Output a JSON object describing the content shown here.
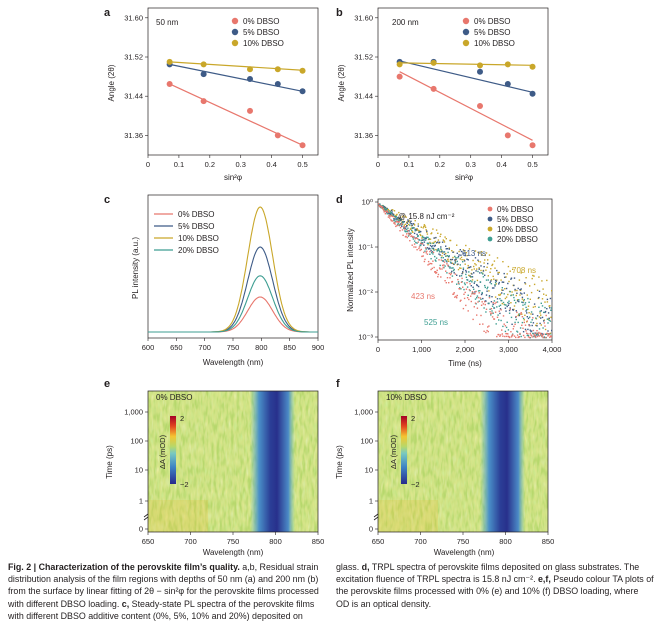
{
  "panels": {
    "a": {
      "label": "a",
      "depth": "50 nm",
      "xlabel": "sin²φ",
      "ylabel": "Angle (2θ)",
      "xticks": [
        "0",
        "0.1",
        "0.2",
        "0.3",
        "0.4",
        "0.5"
      ],
      "yticks": [
        "31.60",
        "31.52",
        "31.44",
        "31.36"
      ]
    },
    "b": {
      "label": "b",
      "depth": "200 nm",
      "xlabel": "sin²φ",
      "ylabel": "Angle (2θ)",
      "xticks": [
        "0",
        "0.1",
        "0.2",
        "0.3",
        "0.4",
        "0.5"
      ],
      "yticks": [
        "31.60",
        "31.52",
        "31.44",
        "31.36"
      ]
    },
    "c": {
      "label": "c",
      "xlabel": "Wavelength (nm)",
      "ylabel": "PL intensity (a.u.)",
      "xticks": [
        "600",
        "650",
        "700",
        "750",
        "800",
        "850",
        "900"
      ]
    },
    "d": {
      "label": "d",
      "xlabel": "Time (ns)",
      "ylabel": "Normalized PL intensity",
      "fluence": "@ 15.8 nJ cm⁻²",
      "xticks": [
        "0",
        "1,000",
        "2,000",
        "3,000",
        "4,000"
      ],
      "yticks": [
        "10⁰",
        "10⁻¹",
        "10⁻²",
        "10⁻³"
      ],
      "lifetimes": [
        "423 ns",
        "613 ns",
        "708 ns",
        "525 ns"
      ]
    },
    "e": {
      "label": "e",
      "tag": "0% DBSO",
      "xlabel": "Wavelength (nm)",
      "ylabel": "Time (ps)",
      "xticks": [
        "650",
        "700",
        "750",
        "800",
        "850"
      ],
      "yticks": [
        "1,000",
        "100",
        "10",
        "1",
        "0"
      ],
      "cbar": {
        "top": "2",
        "bottom": "−2",
        "label": "ΔA (mOD)"
      }
    },
    "f": {
      "label": "f",
      "tag": "10% DBSO",
      "xlabel": "Wavelength (nm)",
      "ylabel": "Time (ps)",
      "xticks": [
        "650",
        "700",
        "750",
        "800",
        "850"
      ],
      "yticks": [
        "1,000",
        "100",
        "10",
        "1",
        "0"
      ],
      "cbar": {
        "top": "2",
        "bottom": "−2",
        "label": "ΔA (mOD)"
      }
    }
  },
  "legend": {
    "series": [
      "0% DBSO",
      "5% DBSO",
      "10% DBSO",
      "20% DBSO"
    ],
    "colors": [
      "#e8776d",
      "#3e5b87",
      "#c9a72a",
      "#3e9e92"
    ]
  },
  "chart_data": [
    {
      "type": "scatter",
      "panel": "a",
      "title": "50 nm",
      "xlabel": "sin²φ",
      "ylabel": "Angle (2θ)",
      "xlim": [
        0,
        0.55
      ],
      "ylim": [
        31.32,
        31.62
      ],
      "series": [
        {
          "name": "0% DBSO",
          "x": [
            0.07,
            0.18,
            0.33,
            0.42,
            0.5
          ],
          "y": [
            31.465,
            31.43,
            31.41,
            31.36,
            31.34
          ],
          "fit": [
            [
              0.07,
              31.465
            ],
            [
              0.5,
              31.34
            ]
          ]
        },
        {
          "name": "5% DBSO",
          "x": [
            0.07,
            0.18,
            0.33,
            0.42,
            0.5
          ],
          "y": [
            31.505,
            31.485,
            31.475,
            31.465,
            31.45
          ],
          "fit": [
            [
              0.07,
              31.505
            ],
            [
              0.5,
              31.45
            ]
          ]
        },
        {
          "name": "10% DBSO",
          "x": [
            0.07,
            0.18,
            0.33,
            0.42,
            0.5
          ],
          "y": [
            31.51,
            31.505,
            31.495,
            31.495,
            31.492
          ],
          "fit": [
            [
              0.07,
              31.51
            ],
            [
              0.5,
              31.493
            ]
          ]
        }
      ]
    },
    {
      "type": "scatter",
      "panel": "b",
      "title": "200 nm",
      "xlabel": "sin²φ",
      "ylabel": "Angle (2θ)",
      "xlim": [
        0,
        0.55
      ],
      "ylim": [
        31.32,
        31.62
      ],
      "series": [
        {
          "name": "0% DBSO",
          "x": [
            0.07,
            0.18,
            0.33,
            0.42,
            0.5
          ],
          "y": [
            31.48,
            31.455,
            31.42,
            31.36,
            31.34
          ],
          "fit": [
            [
              0.07,
              31.49
            ],
            [
              0.5,
              31.35
            ]
          ]
        },
        {
          "name": "5% DBSO",
          "x": [
            0.07,
            0.18,
            0.33,
            0.42,
            0.5
          ],
          "y": [
            31.51,
            31.51,
            31.49,
            31.465,
            31.445
          ],
          "fit": [
            [
              0.07,
              31.512
            ],
            [
              0.5,
              31.448
            ]
          ]
        },
        {
          "name": "10% DBSO",
          "x": [
            0.07,
            0.18,
            0.33,
            0.42,
            0.5
          ],
          "y": [
            31.505,
            31.508,
            31.503,
            31.505,
            31.5
          ],
          "fit": [
            [
              0.07,
              31.508
            ],
            [
              0.5,
              31.503
            ]
          ]
        }
      ]
    },
    {
      "type": "line",
      "panel": "c",
      "xlabel": "Wavelength (nm)",
      "ylabel": "PL intensity (a.u.)",
      "xlim": [
        600,
        900
      ],
      "peak_nm": 798,
      "series": [
        {
          "name": "0% DBSO",
          "peak": 0.28
        },
        {
          "name": "5% DBSO",
          "peak": 0.68
        },
        {
          "name": "10% DBSO",
          "peak": 1.0
        },
        {
          "name": "20% DBSO",
          "peak": 0.45
        }
      ]
    },
    {
      "type": "scatter",
      "panel": "d",
      "xlabel": "Time (ns)",
      "ylabel": "Normalized PL intensity",
      "xlim": [
        0,
        4000
      ],
      "ylim_log10": [
        -3,
        0
      ],
      "series": [
        {
          "name": "0% DBSO",
          "tau_ns": 423
        },
        {
          "name": "5% DBSO",
          "tau_ns": 613
        },
        {
          "name": "10% DBSO",
          "tau_ns": 708
        },
        {
          "name": "20% DBSO",
          "tau_ns": 525
        }
      ]
    },
    {
      "type": "heatmap",
      "panel": "e",
      "xlabel": "Wavelength (nm)",
      "ylabel": "Time (ps)",
      "xlim": [
        650,
        850
      ],
      "bleach_nm": 790,
      "zlim": [
        -2,
        2
      ]
    },
    {
      "type": "heatmap",
      "panel": "f",
      "xlabel": "Wavelength (nm)",
      "ylabel": "Time (ps)",
      "xlim": [
        650,
        850
      ],
      "bleach_nm": 790,
      "zlim": [
        -2,
        2
      ]
    }
  ],
  "caption": {
    "left": {
      "fig": "Fig. 2 | ",
      "title": "Characterization of the perovskite film’s quality.",
      "body1": " a,b, Residual strain distribution analysis of the film regions with depths of 50 nm (a) and 200 nm (b) from the surface by linear fitting of 2θ − sin²φ for the perovskite films processed with different DBSO loading. ",
      "c_lab": "c,",
      "body2": " Steady-state PL spectra of the perovskite films with different DBSO additive content (0%, 5%, 10% and 20%) deposited on"
    },
    "right": {
      "body1": "glass. ",
      "d_lab": "d,",
      "body2": " TRPL spectra of perovskite films deposited on glass substrates. The excitation fluence of TRPL spectra is 15.8 nJ cm⁻². ",
      "ef_lab": "e,f,",
      "body3": " Pseudo colour TA plots of the perovskite films processed with 0% (e) and 10% (f) DBSO loading, where OD is an optical density."
    }
  }
}
